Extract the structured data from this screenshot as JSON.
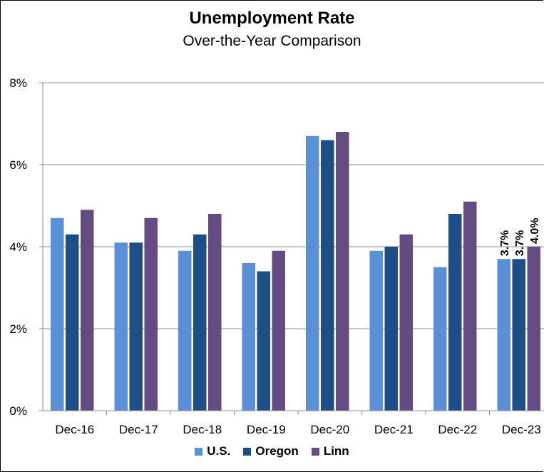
{
  "chart_data": {
    "type": "bar",
    "title": "Unemployment Rate",
    "subtitle": "Over-the-Year Comparison",
    "categories": [
      "Dec-16",
      "Dec-17",
      "Dec-18",
      "Dec-19",
      "Dec-20",
      "Dec-21",
      "Dec-22",
      "Dec-23"
    ],
    "series": [
      {
        "name": "U.S.",
        "color": "#5B8FD6",
        "values": [
          4.7,
          4.1,
          3.9,
          3.6,
          6.7,
          3.9,
          3.5,
          3.7
        ]
      },
      {
        "name": "Oregon",
        "color": "#1F4E86",
        "values": [
          4.3,
          4.1,
          4.3,
          3.4,
          6.6,
          4.0,
          4.8,
          3.7
        ]
      },
      {
        "name": "Linn",
        "color": "#644B80",
        "values": [
          4.9,
          4.7,
          4.8,
          3.9,
          6.8,
          4.3,
          5.1,
          4.0
        ]
      }
    ],
    "data_labels": [
      {
        "category": "Dec-23",
        "series": "U.S.",
        "text": "3.7%"
      },
      {
        "category": "Dec-23",
        "series": "Oregon",
        "text": "3.7%"
      },
      {
        "category": "Dec-23",
        "series": "Linn",
        "text": "4.0%"
      }
    ],
    "yticks": [
      "0%",
      "2%",
      "4%",
      "6%",
      "8%"
    ],
    "ylim": [
      0,
      8
    ],
    "grid": true,
    "legend_position": "bottom"
  }
}
